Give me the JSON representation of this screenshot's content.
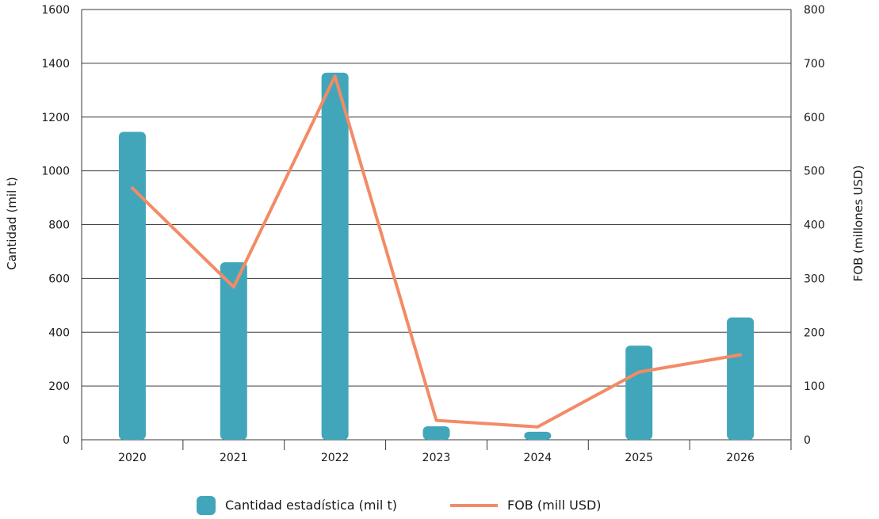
{
  "chart_data": {
    "type": "bar",
    "categories": [
      "2020",
      "2021",
      "2022",
      "2023",
      "2024",
      "2025",
      "2026"
    ],
    "series": [
      {
        "name": "Cantidad estadística (mil t)",
        "type": "bar",
        "axis": "left",
        "values": [
          1145,
          660,
          1365,
          50,
          30,
          350,
          455
        ]
      },
      {
        "name": "FOB (mill USD)",
        "type": "line",
        "axis": "right",
        "values": [
          468,
          284,
          676,
          36,
          24,
          126,
          158
        ]
      }
    ],
    "ylabel": "Cantidad (mil t)",
    "y2label": "FOB (millones USD)",
    "ylim": [
      0,
      1600
    ],
    "y2lim": [
      0,
      800
    ],
    "yticks": [
      "0",
      "200",
      "400",
      "600",
      "800",
      "1000",
      "1200",
      "1400",
      "1600"
    ],
    "y2ticks": [
      "0",
      "100",
      "200",
      "300",
      "400",
      "500",
      "600",
      "700",
      "800"
    ],
    "grid": true,
    "legend_position": "bottom-center",
    "colors": {
      "bar": "#42A6BA",
      "line": "#F28B66",
      "grid": "#3a3a3a"
    }
  }
}
